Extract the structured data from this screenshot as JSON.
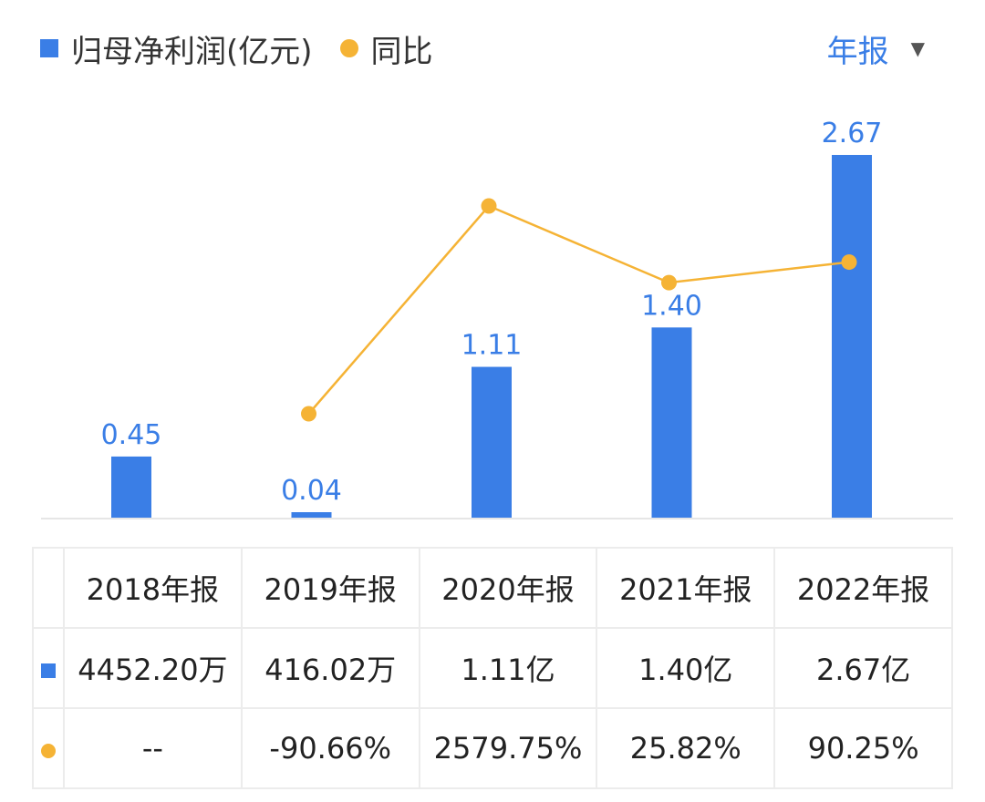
{
  "legend": {
    "bar_label": "归母净利润(亿元)",
    "line_label": "同比"
  },
  "period_selector": {
    "label": "年报"
  },
  "colors": {
    "bar": "#3a7ee6",
    "line": "#f5b335",
    "positive": "#e8434f",
    "negative": "#21a366"
  },
  "chart_data": {
    "type": "bar",
    "categories": [
      "2018年报",
      "2019年报",
      "2020年报",
      "2021年报",
      "2022年报"
    ],
    "series": [
      {
        "name": "归母净利润(亿元)",
        "type": "bar",
        "values": [
          0.45,
          0.04,
          1.11,
          1.4,
          2.67
        ],
        "labels": [
          "0.45",
          "0.04",
          "1.11",
          "1.40",
          "2.67"
        ]
      },
      {
        "name": "同比",
        "type": "line",
        "unit": "%",
        "values": [
          null,
          -90.66,
          2579.75,
          25.82,
          90.25
        ]
      }
    ]
  },
  "table": {
    "headers": [
      "2018年报",
      "2019年报",
      "2020年报",
      "2021年报",
      "2022年报"
    ],
    "profit_row": [
      "4452.20万",
      "416.02万",
      "1.11亿",
      "1.40亿",
      "2.67亿"
    ],
    "yoy_row": [
      "--",
      "-90.66%",
      "2579.75%",
      "25.82%",
      "90.25%"
    ]
  }
}
